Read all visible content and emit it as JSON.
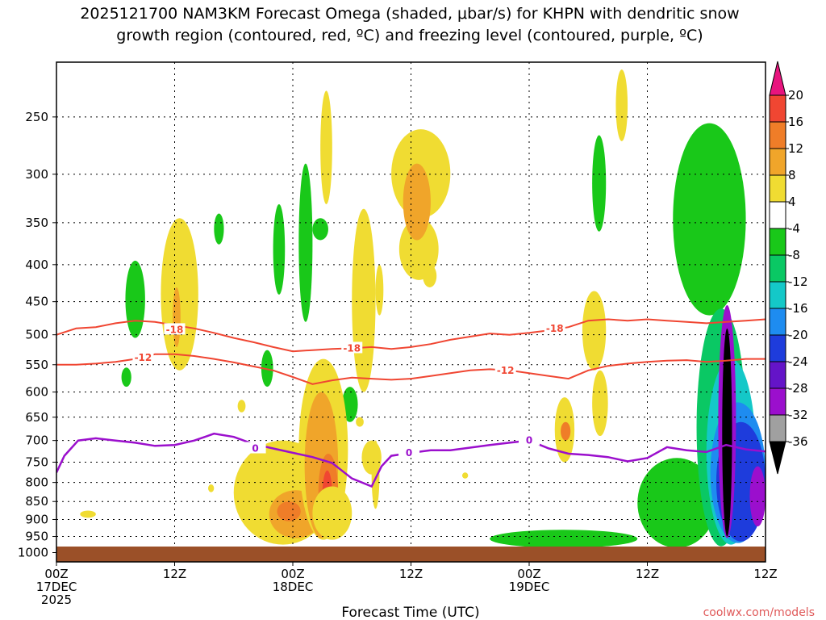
{
  "chart_data": {
    "type": "heatmap",
    "title_line1": "2025121700 NAM3KM Forecast Omega (shaded, μbar/s) for KHPN with dendritic snow",
    "title_line2": "growth region (contoured, red, ºC) and freezing level (contoured, purple, ºC)",
    "xlabel": "Forecast Time (UTC)",
    "credit": "coolwx.com/models",
    "x_range_hours": [
      0,
      36
    ],
    "x_ticks": [
      {
        "hour": 0,
        "lines": [
          "00Z",
          "17DEC",
          "2025"
        ]
      },
      {
        "hour": 6,
        "lines": [
          "12Z"
        ]
      },
      {
        "hour": 12,
        "lines": [
          "00Z",
          "18DEC"
        ]
      },
      {
        "hour": 18,
        "lines": [
          "12Z"
        ]
      },
      {
        "hour": 24,
        "lines": [
          "00Z",
          "19DEC"
        ]
      },
      {
        "hour": 30,
        "lines": [
          "12Z"
        ]
      }
    ],
    "y_ticks_hpa": [
      "250",
      "300",
      "350",
      "400",
      "450",
      "500",
      "550",
      "600",
      "650",
      "700",
      "750",
      "800",
      "850",
      "900",
      "950",
      "1000"
    ],
    "y_range_hpa": [
      1030,
      210
    ],
    "colorbar": {
      "labels": [
        "20",
        "16",
        "12",
        "8",
        "4",
        "-4",
        "-8",
        "-12",
        "-16",
        "-20",
        "-24",
        "-28",
        "-32",
        "-36"
      ],
      "colors": [
        "#e8147e",
        "#f04632",
        "#ef7d28",
        "#f0a52a",
        "#f0dc32",
        "#ffffff",
        "#19c819",
        "#0ac864",
        "#14c8c8",
        "#1e8cf0",
        "#1e3cdc",
        "#6414c8",
        "#9b0fcd",
        "#a0a0a0",
        "#000000"
      ]
    },
    "freezing_level_label": "0",
    "dgz_labels": [
      "-18",
      "-12"
    ],
    "contours": {
      "minus18": [
        [
          0,
          500
        ],
        [
          1,
          490
        ],
        [
          2,
          488
        ],
        [
          3,
          482
        ],
        [
          4,
          478
        ],
        [
          5,
          480
        ],
        [
          6,
          485
        ],
        [
          7,
          490
        ],
        [
          8,
          497
        ],
        [
          9,
          505
        ],
        [
          10,
          512
        ],
        [
          11,
          520
        ],
        [
          12,
          527
        ],
        [
          13,
          525
        ],
        [
          14,
          523
        ],
        [
          15,
          522
        ],
        [
          16,
          520
        ],
        [
          17,
          523
        ],
        [
          18,
          520
        ],
        [
          19,
          515
        ],
        [
          20,
          508
        ],
        [
          21,
          503
        ],
        [
          22,
          498
        ],
        [
          23,
          500
        ],
        [
          24,
          497
        ],
        [
          25,
          493
        ],
        [
          26,
          488
        ],
        [
          27,
          478
        ],
        [
          28,
          476
        ],
        [
          29,
          478
        ],
        [
          30,
          476
        ],
        [
          31,
          478
        ],
        [
          32,
          480
        ],
        [
          33,
          482
        ],
        [
          34,
          480
        ],
        [
          35,
          478
        ],
        [
          36,
          476
        ]
      ],
      "minus12": [
        [
          0,
          550
        ],
        [
          1,
          550
        ],
        [
          2,
          548
        ],
        [
          3,
          545
        ],
        [
          4,
          540
        ],
        [
          5,
          532
        ],
        [
          6,
          532
        ],
        [
          7,
          535
        ],
        [
          8,
          540
        ],
        [
          9,
          546
        ],
        [
          10,
          553
        ],
        [
          11,
          560
        ],
        [
          12,
          572
        ],
        [
          13,
          585
        ],
        [
          14,
          578
        ],
        [
          15,
          573
        ],
        [
          16,
          575
        ],
        [
          17,
          577
        ],
        [
          18,
          575
        ],
        [
          19,
          570
        ],
        [
          20,
          565
        ],
        [
          21,
          560
        ],
        [
          22,
          558
        ],
        [
          23,
          560
        ],
        [
          24,
          565
        ],
        [
          25,
          570
        ],
        [
          26,
          575
        ],
        [
          27,
          560
        ],
        [
          28,
          552
        ],
        [
          29,
          548
        ],
        [
          30,
          545
        ],
        [
          31,
          543
        ],
        [
          32,
          542
        ],
        [
          33,
          545
        ],
        [
          34,
          543
        ],
        [
          35,
          540
        ],
        [
          36,
          540
        ]
      ],
      "zero": [
        [
          0,
          775
        ],
        [
          0.4,
          735
        ],
        [
          1.1,
          700
        ],
        [
          2,
          695
        ],
        [
          3,
          700
        ],
        [
          4,
          705
        ],
        [
          5,
          712
        ],
        [
          6,
          710
        ],
        [
          7,
          700
        ],
        [
          8,
          685
        ],
        [
          9,
          692
        ],
        [
          10,
          708
        ],
        [
          11,
          718
        ],
        [
          12,
          728
        ],
        [
          13,
          738
        ],
        [
          14,
          752
        ],
        [
          15,
          790
        ],
        [
          16,
          810
        ],
        [
          16.5,
          760
        ],
        [
          17,
          735
        ],
        [
          18,
          728
        ],
        [
          19,
          722
        ],
        [
          20,
          722
        ],
        [
          21,
          716
        ],
        [
          22,
          710
        ],
        [
          23,
          705
        ],
        [
          24,
          700
        ],
        [
          25,
          718
        ],
        [
          26,
          730
        ],
        [
          27,
          733
        ],
        [
          28,
          738
        ],
        [
          29,
          748
        ],
        [
          30,
          740
        ],
        [
          31,
          715
        ],
        [
          32,
          722
        ],
        [
          33,
          726
        ],
        [
          34,
          710
        ],
        [
          35,
          720
        ],
        [
          36,
          725
        ]
      ]
    },
    "omega_cells": [
      {
        "x0": 3.5,
        "x1": 4.5,
        "p0": 395,
        "p1": 505,
        "level": -6
      },
      {
        "x0": 3.3,
        "x1": 3.8,
        "p0": 555,
        "p1": 590,
        "level": -6
      },
      {
        "x0": 8.0,
        "x1": 8.5,
        "p0": 340,
        "p1": 375,
        "level": -6
      },
      {
        "x0": 11.0,
        "x1": 11.6,
        "p0": 330,
        "p1": 440,
        "level": -6
      },
      {
        "x0": 10.4,
        "x1": 11.0,
        "p0": 525,
        "p1": 590,
        "level": -6
      },
      {
        "x0": 12.3,
        "x1": 13.0,
        "p0": 290,
        "p1": 480,
        "level": -6
      },
      {
        "x0": 13.0,
        "x1": 13.8,
        "p0": 345,
        "p1": 370,
        "level": -6
      },
      {
        "x0": 14.5,
        "x1": 15.3,
        "p0": 590,
        "p1": 660,
        "level": -6
      },
      {
        "x0": 27.2,
        "x1": 27.9,
        "p0": 265,
        "p1": 360,
        "level": -6
      },
      {
        "x0": 31.3,
        "x1": 35.0,
        "p0": 255,
        "p1": 470,
        "level": -6
      },
      {
        "x0": 29.5,
        "x1": 33.5,
        "p0": 740,
        "p1": 985,
        "level": -6
      },
      {
        "x0": 22.0,
        "x1": 29.5,
        "p0": 930,
        "p1": 985,
        "level": -6
      },
      {
        "x0": 32.5,
        "x1": 35.0,
        "p0": 460,
        "p1": 980,
        "level": -10
      },
      {
        "x0": 33.0,
        "x1": 35.5,
        "p0": 540,
        "p1": 975,
        "level": -14
      },
      {
        "x0": 33.2,
        "x1": 36.0,
        "p0": 620,
        "p1": 970,
        "level": -18
      },
      {
        "x0": 33.5,
        "x1": 36.0,
        "p0": 660,
        "p1": 965,
        "level": -22
      },
      {
        "x0": 33.6,
        "x1": 34.5,
        "p0": 455,
        "p1": 955,
        "level": -30
      },
      {
        "x0": 35.2,
        "x1": 36.0,
        "p0": 760,
        "p1": 920,
        "level": -30
      },
      {
        "x0": 33.8,
        "x1": 34.3,
        "p0": 490,
        "p1": 950,
        "level": -40
      },
      {
        "x0": 5.3,
        "x1": 7.2,
        "p0": 345,
        "p1": 560,
        "level": 6
      },
      {
        "x0": 5.9,
        "x1": 6.3,
        "p0": 430,
        "p1": 520,
        "level": 10
      },
      {
        "x0": 9.0,
        "x1": 14.0,
        "p0": 700,
        "p1": 975,
        "level": 6
      },
      {
        "x0": 10.8,
        "x1": 13.5,
        "p0": 820,
        "p1": 955,
        "level": 10
      },
      {
        "x0": 11.2,
        "x1": 12.4,
        "p0": 850,
        "p1": 905,
        "level": 14
      },
      {
        "x0": 12.3,
        "x1": 14.8,
        "p0": 540,
        "p1": 960,
        "level": 6
      },
      {
        "x0": 12.6,
        "x1": 14.3,
        "p0": 600,
        "p1": 955,
        "level": 10
      },
      {
        "x0": 13.3,
        "x1": 14.3,
        "p0": 730,
        "p1": 925,
        "level": 14
      },
      {
        "x0": 13.5,
        "x1": 14.0,
        "p0": 770,
        "p1": 900,
        "level": 18
      },
      {
        "x0": 13.0,
        "x1": 15.0,
        "p0": 810,
        "p1": 960,
        "level": 6
      },
      {
        "x0": 13.4,
        "x1": 14.0,
        "p0": 230,
        "p1": 330,
        "level": 6
      },
      {
        "x0": 15.0,
        "x1": 16.2,
        "p0": 335,
        "p1": 600,
        "level": 6
      },
      {
        "x0": 16.0,
        "x1": 16.4,
        "p0": 700,
        "p1": 870,
        "level": 6
      },
      {
        "x0": 15.5,
        "x1": 16.5,
        "p0": 700,
        "p1": 780,
        "level": 6
      },
      {
        "x0": 16.2,
        "x1": 16.6,
        "p0": 400,
        "p1": 470,
        "level": 6
      },
      {
        "x0": 17.0,
        "x1": 20.0,
        "p0": 260,
        "p1": 345,
        "level": 6
      },
      {
        "x0": 17.4,
        "x1": 19.4,
        "p0": 345,
        "p1": 420,
        "level": 6
      },
      {
        "x0": 17.6,
        "x1": 19.0,
        "p0": 290,
        "p1": 370,
        "level": 10
      },
      {
        "x0": 18.6,
        "x1": 19.3,
        "p0": 400,
        "p1": 430,
        "level": 6
      },
      {
        "x0": 26.7,
        "x1": 27.9,
        "p0": 435,
        "p1": 560,
        "level": 6
      },
      {
        "x0": 25.3,
        "x1": 26.3,
        "p0": 610,
        "p1": 750,
        "level": 6
      },
      {
        "x0": 25.6,
        "x1": 26.1,
        "p0": 660,
        "p1": 700,
        "level": 14
      },
      {
        "x0": 27.2,
        "x1": 28.0,
        "p0": 560,
        "p1": 690,
        "level": 6
      },
      {
        "x0": 28.4,
        "x1": 29.0,
        "p0": 215,
        "p1": 270,
        "level": 6
      },
      {
        "x0": 1.2,
        "x1": 2.0,
        "p0": 875,
        "p1": 895,
        "level": 6
      },
      {
        "x0": 7.7,
        "x1": 8.0,
        "p0": 805,
        "p1": 825,
        "level": 6
      },
      {
        "x0": 20.6,
        "x1": 20.9,
        "p0": 775,
        "p1": 790,
        "level": 6
      },
      {
        "x0": 15.2,
        "x1": 15.6,
        "p0": 650,
        "p1": 670,
        "level": 6
      },
      {
        "x0": 9.2,
        "x1": 9.6,
        "p0": 615,
        "p1": 640,
        "level": 6
      }
    ]
  }
}
